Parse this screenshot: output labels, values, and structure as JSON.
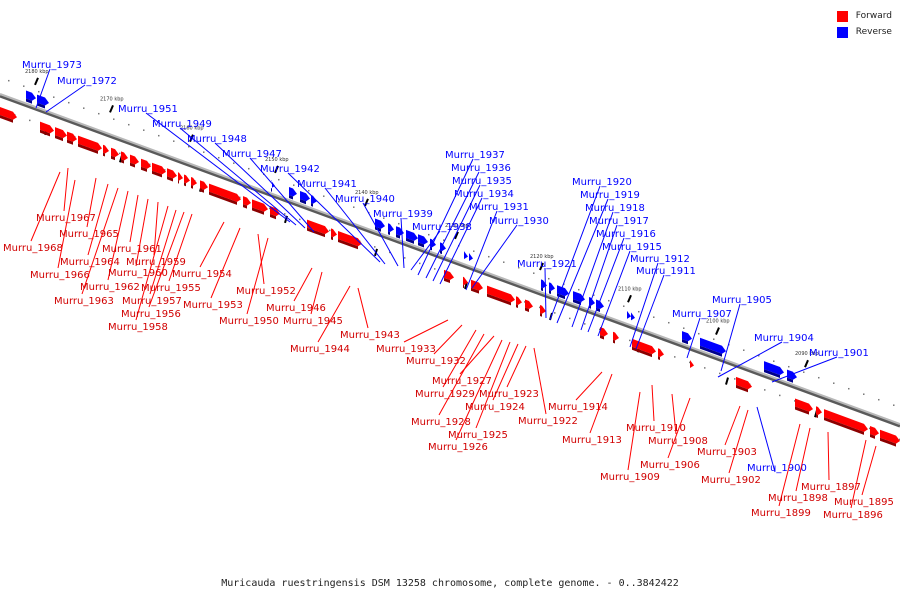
{
  "legend": {
    "items": [
      {
        "label": "Forward",
        "color": "#ff0000"
      },
      {
        "label": "Reverse",
        "color": "#0000ff"
      }
    ]
  },
  "colors": {
    "forward": "#ff0000",
    "reverse": "#0000ff",
    "axis": "#8c8c8c"
  },
  "caption": "Muricauda ruestringensis DSM 13258 chromosome, complete genome. - 0..3842422",
  "ticks": [
    "2180 kbp",
    "2170 kbp",
    "2160 kbp",
    "2150 kbp",
    "2140 kbp",
    "2130 kbp",
    "2120 kbp",
    "2110 kbp",
    "2100 kbp",
    "2090 kbp"
  ],
  "forward_labels": [
    "Murru_1968",
    "Murru_1967",
    "Murru_1966",
    "Murru_1965",
    "Murru_1964",
    "Murru_1963",
    "Murru_1962",
    "Murru_1961",
    "Murru_1960",
    "Murru_1959",
    "Murru_1958",
    "Murru_1957",
    "Murru_1956",
    "Murru_1955",
    "Murru_1954",
    "Murru_1953",
    "Murru_1952",
    "Murru_1950",
    "Murru_1946",
    "Murru_1945",
    "Murru_1944",
    "Murru_1943",
    "Murru_1933",
    "Murru_1932",
    "Murru_1929",
    "Murru_1928",
    "Murru_1927",
    "Murru_1926",
    "Murru_1925",
    "Murru_1924",
    "Murru_1923",
    "Murru_1922",
    "Murru_1914",
    "Murru_1913",
    "Murru_1910",
    "Murru_1909",
    "Murru_1908",
    "Murru_1906",
    "Murru_1903",
    "Murru_1902",
    "Murru_1899",
    "Murru_1898",
    "Murru_1897",
    "Murru_1896",
    "Murru_1895"
  ],
  "reverse_labels": [
    "Murru_1973",
    "Murru_1972",
    "Murru_1951",
    "Murru_1949",
    "Murru_1948",
    "Murru_1947",
    "Murru_1942",
    "Murru_1941",
    "Murru_1940",
    "Murru_1939",
    "Murru_1938",
    "Murru_1937",
    "Murru_1936",
    "Murru_1935",
    "Murru_1934",
    "Murru_1931",
    "Murru_1930",
    "Murru_1921",
    "Murru_1920",
    "Murru_1919",
    "Murru_1918",
    "Murru_1917",
    "Murru_1916",
    "Murru_1915",
    "Murru_1912",
    "Murru_1911",
    "Murru_1907",
    "Murru_1905",
    "Murru_1904",
    "Murru_1901",
    "Murru_1900"
  ]
}
